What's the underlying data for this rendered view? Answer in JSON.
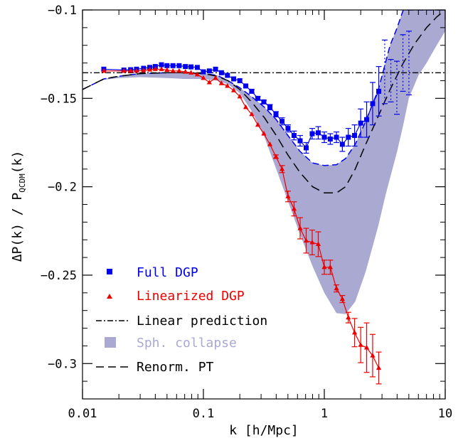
{
  "chart_data": {
    "type": "line",
    "xscale": "log",
    "xlim": [
      0.01,
      10
    ],
    "ylim": [
      -0.32,
      -0.1
    ],
    "xlabel": "k [h/Mpc]",
    "ylabel_main": "ΔP(k) / P",
    "ylabel_sub": "QCDM",
    "ylabel_tail": "(k)",
    "xticks": [
      {
        "value": 0.01,
        "label": "0.01"
      },
      {
        "value": 0.1,
        "label": "0.1"
      },
      {
        "value": 1,
        "label": "1"
      },
      {
        "value": 10,
        "label": "10"
      }
    ],
    "yticks": [
      {
        "value": -0.1,
        "label": "−0.1"
      },
      {
        "value": -0.15,
        "label": "−0.15"
      },
      {
        "value": -0.2,
        "label": "−0.2"
      },
      {
        "value": -0.25,
        "label": "−0.25"
      },
      {
        "value": -0.3,
        "label": "−0.3"
      }
    ],
    "legend_position": "bottom-left",
    "colors": {
      "full": "#0000ee",
      "linearized": "#ee0000",
      "band": "#a9a9d2",
      "black": "#000000"
    },
    "series": [
      {
        "name": "Full DGP",
        "style": "markers-line",
        "marker": "square",
        "x": [
          0.015,
          0.022,
          0.025,
          0.028,
          0.032,
          0.036,
          0.04,
          0.045,
          0.05,
          0.056,
          0.063,
          0.071,
          0.079,
          0.089,
          0.1,
          0.112,
          0.126,
          0.141,
          0.158,
          0.178,
          0.2,
          0.224,
          0.251,
          0.282,
          0.316,
          0.355,
          0.398,
          0.447,
          0.501,
          0.562,
          0.631,
          0.708,
          0.794,
          0.891,
          1.0,
          1.12,
          1.26,
          1.41,
          1.58,
          1.78,
          2.0,
          2.24,
          2.51,
          2.82
        ],
        "y": [
          -0.1335,
          -0.134,
          -0.1338,
          -0.1335,
          -0.133,
          -0.1325,
          -0.132,
          -0.131,
          -0.1315,
          -0.1315,
          -0.1315,
          -0.132,
          -0.1322,
          -0.1325,
          -0.135,
          -0.1345,
          -0.1335,
          -0.1355,
          -0.137,
          -0.139,
          -0.14,
          -0.143,
          -0.146,
          -0.15,
          -0.152,
          -0.155,
          -0.159,
          -0.163,
          -0.167,
          -0.171,
          -0.174,
          -0.178,
          -0.17,
          -0.1695,
          -0.172,
          -0.173,
          -0.172,
          -0.176,
          -0.172,
          -0.171,
          -0.164,
          -0.162,
          -0.153,
          -0.146
        ],
        "err": [
          0,
          0,
          0,
          0,
          0,
          0,
          0,
          0,
          0,
          0,
          0,
          0,
          0,
          0,
          0,
          0,
          0,
          0,
          0,
          0,
          0,
          0,
          0.001,
          0.001,
          0.001,
          0.0015,
          0.0015,
          0.002,
          0.002,
          0.0025,
          0.003,
          0.003,
          0.003,
          0.0035,
          0.003,
          0.003,
          0.003,
          0.004,
          0.005,
          0.006,
          0.008,
          0.01,
          0.012,
          0.014
        ]
      },
      {
        "name": "",
        "style": "dotted-errorbars",
        "x": [
          3.16,
          3.55,
          3.98,
          4.47,
          5.01
        ],
        "y": [
          -0.135,
          -0.14,
          -0.144,
          -0.13,
          -0.13
        ],
        "err": [
          0.018,
          0.012,
          0.015,
          0.016,
          0.018
        ]
      },
      {
        "name": "Linearized DGP",
        "style": "markers-line",
        "marker": "triangle",
        "x": [
          0.015,
          0.022,
          0.025,
          0.028,
          0.032,
          0.036,
          0.04,
          0.045,
          0.05,
          0.056,
          0.063,
          0.071,
          0.079,
          0.089,
          0.1,
          0.112,
          0.126,
          0.141,
          0.158,
          0.178,
          0.2,
          0.224,
          0.251,
          0.282,
          0.316,
          0.355,
          0.398,
          0.447,
          0.501,
          0.562,
          0.631,
          0.708,
          0.794,
          0.891,
          1.0,
          1.12,
          1.26,
          1.41,
          1.58,
          1.78,
          2.0,
          2.24,
          2.51,
          2.82
        ],
        "y": [
          -0.1345,
          -0.1345,
          -0.1345,
          -0.1345,
          -0.1342,
          -0.1338,
          -0.1335,
          -0.1335,
          -0.134,
          -0.1345,
          -0.1345,
          -0.135,
          -0.1355,
          -0.1365,
          -0.1385,
          -0.141,
          -0.1385,
          -0.1415,
          -0.143,
          -0.1455,
          -0.149,
          -0.155,
          -0.159,
          -0.165,
          -0.17,
          -0.176,
          -0.183,
          -0.19,
          -0.2055,
          -0.2125,
          -0.2235,
          -0.2305,
          -0.2315,
          -0.2325,
          -0.2455,
          -0.2455,
          -0.2575,
          -0.2635,
          -0.274,
          -0.2825,
          -0.2895,
          -0.291,
          -0.2955,
          -0.3025
        ],
        "err": [
          0,
          0,
          0,
          0,
          0,
          0,
          0,
          0,
          0,
          0,
          0,
          0,
          0,
          0,
          0,
          0,
          0,
          0,
          0,
          0,
          0,
          0,
          0,
          0,
          0,
          0,
          0.001,
          0.002,
          0.003,
          0.004,
          0.006,
          0.007,
          0.007,
          0.007,
          0.004,
          0.004,
          0.002,
          0.002,
          0.003,
          0.008,
          0.01,
          0.014,
          0.012,
          0.009
        ]
      },
      {
        "name": "Linear prediction",
        "style": "dash-dot",
        "x": [
          0.01,
          10
        ],
        "y": [
          -0.1355,
          -0.1355
        ]
      },
      {
        "name": "Renorm. PT",
        "style": "dashed",
        "x": [
          0.01,
          0.015,
          0.02,
          0.03,
          0.05,
          0.07,
          0.1,
          0.13,
          0.16,
          0.2,
          0.25,
          0.32,
          0.4,
          0.5,
          0.63,
          0.8,
          1.0,
          1.26,
          1.5,
          1.8,
          2.2,
          2.8,
          3.5,
          4.5,
          5.6,
          7.0,
          8.5,
          10.0
        ],
        "y": [
          -0.145,
          -0.139,
          -0.1375,
          -0.136,
          -0.1355,
          -0.1355,
          -0.136,
          -0.1375,
          -0.14,
          -0.145,
          -0.152,
          -0.161,
          -0.171,
          -0.182,
          -0.192,
          -0.2,
          -0.2035,
          -0.2035,
          -0.2,
          -0.19,
          -0.176,
          -0.16,
          -0.145,
          -0.13,
          -0.119,
          -0.11,
          -0.104,
          -0.1
        ]
      },
      {
        "name": "Sph. collapse",
        "style": "band",
        "x": [
          0.01,
          0.015,
          0.02,
          0.03,
          0.05,
          0.07,
          0.1,
          0.13,
          0.16,
          0.2,
          0.25,
          0.32,
          0.4,
          0.5,
          0.63,
          0.8,
          1.0,
          1.26,
          1.5,
          1.8,
          2.2,
          2.8,
          3.2,
          3.5,
          4.0,
          4.5,
          5.0,
          6.0,
          7.0,
          8.5,
          10.0
        ],
        "upper": [
          -0.145,
          -0.139,
          -0.1375,
          -0.136,
          -0.1355,
          -0.1355,
          -0.136,
          -0.137,
          -0.14,
          -0.144,
          -0.149,
          -0.155,
          -0.162,
          -0.171,
          -0.18,
          -0.1865,
          -0.188,
          -0.1875,
          -0.184,
          -0.176,
          -0.163,
          -0.145,
          -0.13,
          -0.12,
          -0.11,
          -0.1,
          -0.1,
          -0.1,
          -0.1,
          -0.1,
          -0.1
        ],
        "lower": [
          -0.145,
          -0.1395,
          -0.1385,
          -0.138,
          -0.1385,
          -0.139,
          -0.139,
          -0.14,
          -0.142,
          -0.147,
          -0.157,
          -0.172,
          -0.19,
          -0.208,
          -0.227,
          -0.245,
          -0.26,
          -0.2715,
          -0.272,
          -0.265,
          -0.248,
          -0.222,
          -0.205,
          -0.195,
          -0.18,
          -0.165,
          -0.15,
          -0.137,
          -0.13,
          -0.12,
          -0.112
        ]
      }
    ]
  }
}
